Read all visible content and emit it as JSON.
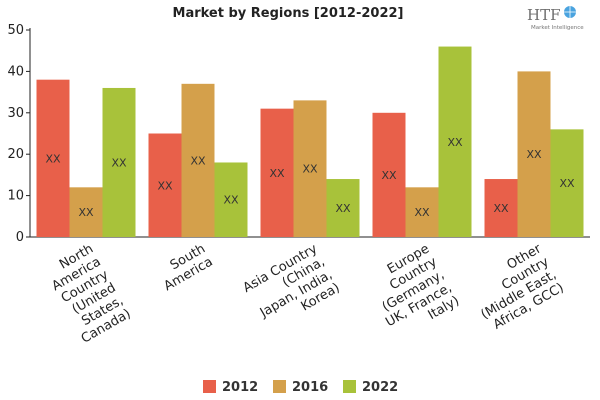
{
  "logo": {
    "mark": "HTF",
    "tagline": "Market Intelligence"
  },
  "chart_data": {
    "type": "bar",
    "title": "Market by Regions [2012-2022]",
    "categories": [
      [
        "North",
        "America",
        "Country",
        "(United",
        "States,",
        "Canada)"
      ],
      [
        "South",
        "America"
      ],
      [
        "Asia Country",
        "(China,",
        "Japan, India,",
        "Korea)"
      ],
      [
        "Europe",
        "Country",
        "(Germany,",
        "UK, France,",
        "Italy)"
      ],
      [
        "Other",
        "Country",
        "(Middle East,",
        "Africa, GCC)"
      ]
    ],
    "series": [
      {
        "name": "2012",
        "color": "#e8604a",
        "values": [
          38,
          25,
          31,
          30,
          14
        ]
      },
      {
        "name": "2016",
        "color": "#d4a04b",
        "values": [
          12,
          37,
          33,
          12,
          40
        ]
      },
      {
        "name": "2022",
        "color": "#a8c23a",
        "values": [
          36,
          18,
          14,
          46,
          26
        ]
      }
    ],
    "bar_label": "XX",
    "ylim": [
      0,
      50
    ],
    "yticks": [
      0,
      10,
      20,
      30,
      40,
      50
    ],
    "grid": false,
    "legend": "bottom"
  }
}
